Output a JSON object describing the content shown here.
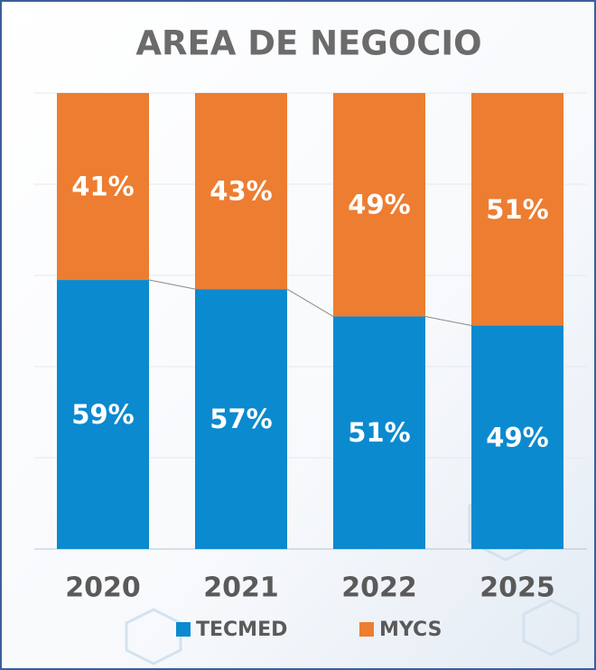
{
  "chart_data": {
    "type": "bar",
    "stacked": true,
    "title": "AREA DE NEGOCIO",
    "categories": [
      "2020",
      "2021",
      "2022",
      "2025"
    ],
    "series": [
      {
        "name": "TECMED",
        "color": "#0b8acf",
        "values": [
          59,
          57,
          51,
          49
        ],
        "value_labels": [
          "59%",
          "57%",
          "51%",
          "49%"
        ]
      },
      {
        "name": "MYCS",
        "color": "#ed7d31",
        "values": [
          41,
          43,
          49,
          51
        ],
        "value_labels": [
          "41%",
          "43%",
          "49%",
          "51%"
        ]
      }
    ],
    "ylim": [
      0,
      100
    ],
    "yticks": [
      0,
      20,
      40,
      60,
      80,
      100
    ],
    "grid": true,
    "legend": "bottom"
  }
}
